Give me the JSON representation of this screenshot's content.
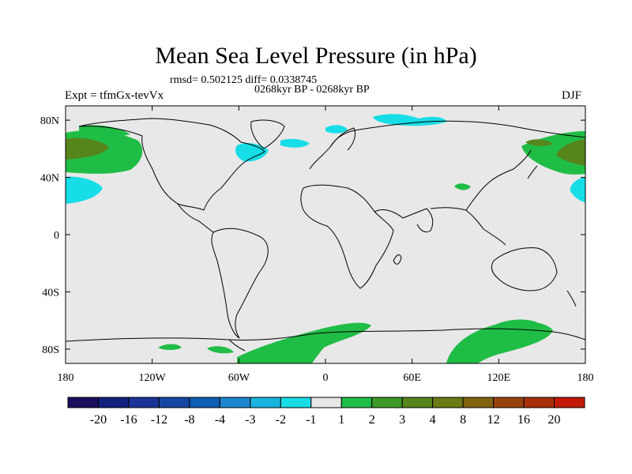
{
  "title": "Mean Sea Level Pressure (in hPa)",
  "stats": "rmsd= 0.502125 diff= 0.0338745",
  "period": "0268kyr BP - 0268kyr BP",
  "experiment": "Expt = tfmGx-tevVx",
  "season": "DJF",
  "axes": {
    "x_ticks": [
      {
        "label": "180",
        "lon": -180
      },
      {
        "label": "120W",
        "lon": -120
      },
      {
        "label": "60W",
        "lon": -60
      },
      {
        "label": "0",
        "lon": 0
      },
      {
        "label": "60E",
        "lon": 60
      },
      {
        "label": "120E",
        "lon": 120
      },
      {
        "label": "180",
        "lon": 180
      }
    ],
    "y_ticks": [
      {
        "label": "80N",
        "lat": 80
      },
      {
        "label": "40N",
        "lat": 40
      },
      {
        "label": "0",
        "lat": 0
      },
      {
        "label": "40S",
        "lat": -40
      },
      {
        "label": "80S",
        "lat": -80
      }
    ],
    "lon_range": [
      -180,
      180
    ],
    "lat_range": [
      -90,
      90
    ]
  },
  "colorbar": {
    "colors": [
      "#1b0e5e",
      "#14207e",
      "#1b3397",
      "#1546a3",
      "#0f5cb5",
      "#1d88cf",
      "#19b3e0",
      "#16dde6",
      "#e8e8e8",
      "#20bd46",
      "#3c9a29",
      "#56851c",
      "#6b7a14",
      "#80620f",
      "#98430d",
      "#aa2e0a",
      "#c11a07"
    ],
    "labels": [
      "-20",
      "-16",
      "-12",
      "-8",
      "-4",
      "-3",
      "-2",
      "-1",
      "1",
      "2",
      "3",
      "4",
      "8",
      "12",
      "16",
      "20"
    ]
  },
  "colors": {
    "background": "#e8e8e8",
    "cyan": "#16dde6",
    "green": "#20bd46",
    "olive": "#56851c"
  }
}
